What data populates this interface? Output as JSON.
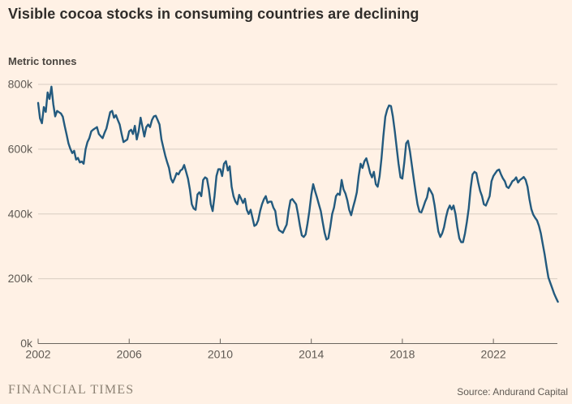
{
  "header": {
    "title": "Visible cocoa stocks in consuming countries are declining"
  },
  "chart": {
    "units_label": "Metric tonnes"
  },
  "chart_data": {
    "type": "line",
    "title": "Visible cocoa stocks in consuming countries are declining",
    "ylabel": "Metric tonnes",
    "series_name": "Visible cocoa stocks (metric tonnes)",
    "x_start_year": 2002,
    "points_per_year": 12,
    "x_ticks": [
      2002,
      2006,
      2010,
      2014,
      2018,
      2022
    ],
    "y_ticks_k": [
      "0k",
      "200k",
      "400k",
      "600k",
      "800k"
    ],
    "y_tick_values_k": [
      0,
      200,
      400,
      600,
      800
    ],
    "ylim_k": [
      0,
      800
    ],
    "grid": true,
    "legend": false,
    "colors": {
      "background": "#fff1e5",
      "line": "#235a7e",
      "grid": "#d8cdc2",
      "axis": "#6b655e",
      "tick_label": "#5f5a54",
      "title_text": "#2f2d2a"
    },
    "values_k": [
      743,
      695,
      680,
      730,
      715,
      775,
      755,
      793,
      739,
      701,
      718,
      714,
      710,
      700,
      672,
      645,
      618,
      601,
      588,
      595,
      568,
      573,
      559,
      562,
      555,
      600,
      622,
      634,
      655,
      660,
      664,
      668,
      647,
      640,
      634,
      650,
      664,
      689,
      714,
      718,
      697,
      705,
      690,
      676,
      647,
      622,
      626,
      630,
      655,
      660,
      647,
      672,
      630,
      655,
      697,
      668,
      639,
      668,
      676,
      668,
      690,
      701,
      703,
      690,
      676,
      630,
      605,
      580,
      560,
      542,
      509,
      497,
      510,
      526,
      522,
      534,
      538,
      551,
      530,
      509,
      476,
      430,
      417,
      413,
      460,
      467,
      455,
      505,
      513,
      509,
      476,
      430,
      409,
      455,
      517,
      538,
      538,
      517,
      555,
      563,
      534,
      547,
      484,
      455,
      438,
      430,
      459,
      447,
      434,
      447,
      413,
      400,
      413,
      388,
      363,
      367,
      380,
      409,
      430,
      445,
      455,
      434,
      438,
      438,
      420,
      409,
      367,
      350,
      346,
      342,
      355,
      367,
      409,
      442,
      446,
      438,
      430,
      400,
      363,
      334,
      329,
      337,
      370,
      409,
      459,
      492,
      470,
      451,
      430,
      409,
      375,
      342,
      321,
      325,
      360,
      400,
      420,
      455,
      463,
      459,
      505,
      476,
      463,
      442,
      413,
      396,
      420,
      442,
      467,
      517,
      555,
      542,
      563,
      572,
      551,
      526,
      513,
      530,
      492,
      484,
      517,
      572,
      640,
      700,
      722,
      735,
      733,
      701,
      655,
      605,
      555,
      513,
      509,
      559,
      618,
      626,
      593,
      551,
      509,
      467,
      430,
      407,
      405,
      420,
      438,
      451,
      480,
      470,
      459,
      426,
      384,
      346,
      329,
      340,
      359,
      390,
      413,
      426,
      414,
      426,
      400,
      359,
      325,
      313,
      313,
      340,
      375,
      417,
      480,
      522,
      530,
      526,
      497,
      471,
      455,
      430,
      426,
      440,
      455,
      501,
      517,
      526,
      534,
      537,
      522,
      510,
      501,
      484,
      480,
      490,
      501,
      505,
      513,
      497,
      505,
      509,
      514,
      505,
      484,
      445,
      415,
      398,
      388,
      380,
      363,
      340,
      308,
      275,
      238,
      204,
      187,
      171,
      154,
      141,
      129
    ]
  },
  "footer": {
    "brand": "FINANCIAL TIMES",
    "source": "Source: Andurand Capital"
  }
}
